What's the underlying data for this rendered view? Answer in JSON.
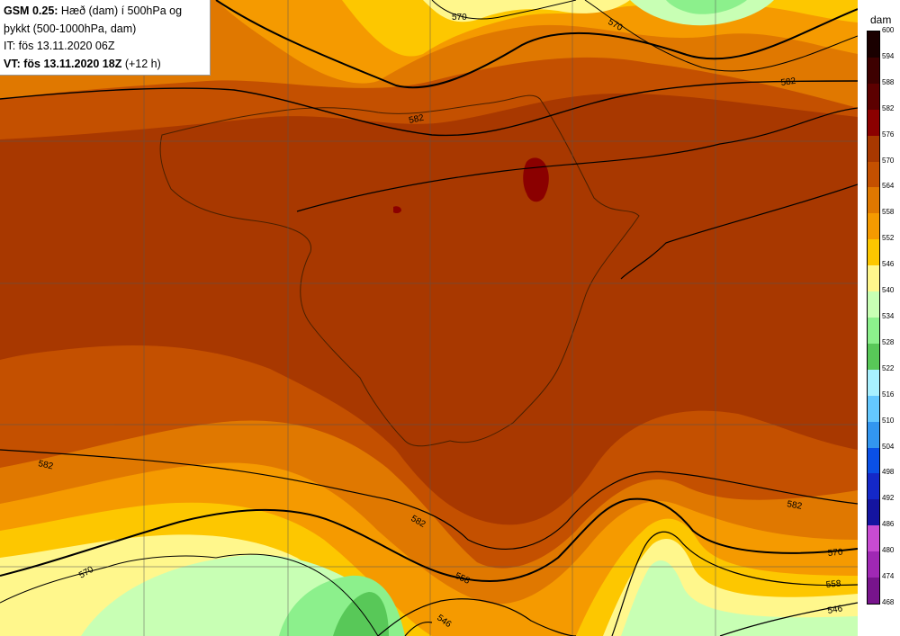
{
  "info": {
    "model": "GSM 0.25:",
    "title_rest": "Hæð (dam) í 500hPa og",
    "title_line2": "þykkt (500-1000hPa, dam)",
    "it_line": "IT: fös 13.11.2020 06Z",
    "vt_bold": "VT: fös 13.11.2020 18Z",
    "vt_rest": "(+12 h)"
  },
  "colorbar": {
    "unit": "dam",
    "levels": [
      "600",
      "594",
      "588",
      "582",
      "576",
      "570",
      "564",
      "558",
      "552",
      "546",
      "540",
      "534",
      "528",
      "522",
      "516",
      "510",
      "504",
      "498",
      "492",
      "486",
      "480",
      "474",
      "468"
    ],
    "colors": [
      "#1a0000",
      "#3d0000",
      "#5c0000",
      "#8b0000",
      "#a83800",
      "#c45000",
      "#e07800",
      "#f59a00",
      "#fdc700",
      "#fff78c",
      "#c8ffb4",
      "#8cf08c",
      "#58c858",
      "#a8f0ff",
      "#64c8ff",
      "#3296f0",
      "#0a50e6",
      "#1428c8",
      "#1414a0",
      "#c84bd2",
      "#a028b4",
      "#78148c",
      "#500a64"
    ]
  },
  "contour_labels": [
    "570",
    "570",
    "582",
    "582",
    "582",
    "582",
    "582",
    "570",
    "570",
    "558",
    "558",
    "546",
    "546"
  ],
  "colors": {
    "land_border": "#4a2000",
    "height_contour": "#000000"
  }
}
